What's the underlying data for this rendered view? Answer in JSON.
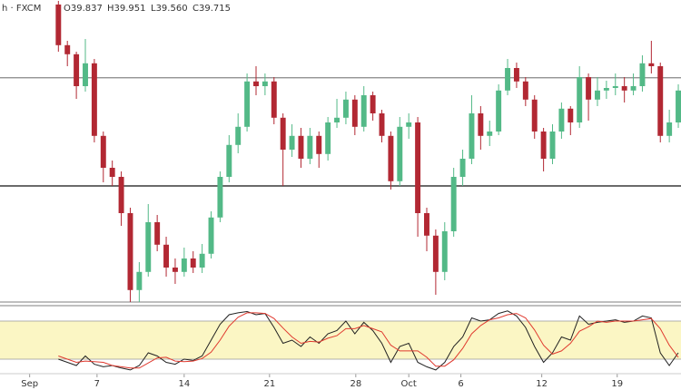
{
  "chart_data": {
    "type": "candlestick",
    "header": {
      "symbol": "h · FXCM",
      "open": "O39.837",
      "high": "H39.951",
      "low": "L39.560",
      "close": "C39.715"
    },
    "up_color": "#53b987",
    "down_color": "#b22833",
    "open": [
      40.0,
      38.88,
      38.63,
      37.75,
      38.38,
      36.38,
      35.5,
      35.25,
      34.25,
      32.13,
      32.63,
      34.0,
      33.38,
      32.75,
      32.63,
      33.0,
      32.75,
      33.13,
      34.13,
      35.25,
      36.13,
      36.63,
      37.88,
      37.75,
      37.88,
      36.88,
      36.0,
      36.38,
      35.75,
      36.38,
      35.88,
      36.75,
      36.88,
      37.38,
      36.63,
      37.5,
      37.0,
      36.38,
      35.13,
      36.63,
      36.75,
      34.25,
      33.63,
      32.63,
      33.75,
      35.25,
      35.75,
      37.0,
      36.38,
      36.5,
      37.63,
      38.25,
      37.88,
      37.38,
      36.5,
      35.75,
      36.5,
      37.13,
      36.75,
      38.0,
      37.38,
      37.63,
      37.7,
      37.75,
      37.63,
      37.75,
      38.38,
      38.3,
      36.38,
      36.75
    ],
    "high": [
      40.1,
      39.0,
      38.7,
      39.05,
      38.5,
      36.5,
      35.7,
      35.4,
      34.4,
      32.9,
      34.5,
      34.2,
      33.6,
      33.0,
      33.3,
      33.2,
      33.4,
      34.3,
      35.4,
      36.4,
      37.0,
      38.1,
      38.3,
      38.1,
      38.0,
      37.0,
      36.7,
      36.6,
      36.6,
      36.5,
      36.9,
      37.4,
      37.6,
      37.5,
      37.75,
      37.6,
      37.1,
      36.5,
      36.9,
      37.0,
      36.9,
      34.4,
      33.8,
      34.0,
      35.5,
      36.0,
      37.5,
      37.2,
      36.8,
      37.8,
      38.5,
      38.4,
      38.0,
      37.5,
      36.6,
      36.7,
      37.3,
      37.2,
      38.3,
      38.1,
      38.0,
      37.9,
      38.1,
      38.0,
      38.1,
      38.6,
      39.0,
      38.4,
      37.1,
      37.8
    ],
    "low": [
      38.7,
      38.3,
      37.4,
      37.6,
      36.2,
      35.1,
      35.0,
      33.9,
      31.8,
      31.8,
      32.5,
      33.2,
      32.5,
      32.3,
      32.5,
      32.6,
      32.6,
      33.0,
      34.0,
      35.1,
      35.9,
      36.5,
      37.5,
      37.5,
      36.7,
      35.0,
      35.8,
      35.5,
      35.6,
      35.5,
      35.7,
      36.6,
      36.7,
      36.4,
      36.5,
      36.8,
      36.2,
      34.9,
      35.0,
      36.3,
      33.6,
      33.2,
      32.0,
      32.4,
      33.6,
      35.0,
      35.6,
      36.0,
      36.1,
      36.4,
      37.5,
      37.7,
      37.2,
      36.3,
      35.4,
      35.6,
      36.3,
      36.4,
      36.6,
      36.8,
      37.2,
      37.4,
      37.5,
      37.3,
      37.5,
      37.6,
      38.1,
      36.2,
      36.2,
      36.6
    ],
    "close": [
      38.88,
      38.63,
      37.75,
      38.38,
      36.38,
      35.5,
      35.25,
      34.25,
      32.13,
      32.63,
      34.0,
      33.38,
      32.75,
      32.63,
      33.0,
      32.75,
      33.13,
      34.13,
      35.25,
      36.13,
      36.63,
      37.88,
      37.75,
      37.88,
      36.88,
      36.0,
      36.38,
      35.75,
      36.38,
      35.88,
      36.75,
      36.88,
      37.38,
      36.63,
      37.5,
      37.0,
      36.38,
      35.13,
      36.63,
      36.75,
      34.25,
      33.63,
      32.63,
      33.75,
      35.25,
      35.75,
      37.0,
      36.38,
      36.5,
      37.63,
      38.25,
      37.88,
      37.38,
      36.5,
      35.75,
      36.5,
      37.13,
      36.75,
      38.0,
      37.38,
      37.63,
      37.7,
      37.75,
      37.63,
      37.75,
      38.38,
      38.3,
      36.38,
      36.75,
      37.63
    ],
    "ylim": [
      31.5,
      40.125
    ],
    "levels": [
      37.98,
      35.0,
      31.8,
      31.7
    ],
    "xlim": [
      -6.5,
      69.3
    ],
    "xticks": [
      {
        "value": -3.2,
        "label": "Sep"
      },
      {
        "value": 4.3,
        "label": "7"
      },
      {
        "value": 14.0,
        "label": "14"
      },
      {
        "value": 23.5,
        "label": "21"
      },
      {
        "value": 33.1,
        "label": "28"
      },
      {
        "value": 39.0,
        "label": "Oct"
      },
      {
        "value": 44.8,
        "label": "6"
      },
      {
        "value": 53.8,
        "label": "12"
      },
      {
        "value": 62.2,
        "label": "19"
      }
    ],
    "stoch": {
      "ylim": [
        0,
        100
      ],
      "band": [
        20,
        80
      ],
      "band_color": "#fbf6c4",
      "series": [
        {
          "color": "#222222",
          "values": [
            20,
            15,
            10,
            25,
            12,
            8,
            10,
            6,
            3,
            10,
            30,
            25,
            15,
            12,
            20,
            18,
            25,
            50,
            75,
            90,
            93,
            95,
            90,
            92,
            70,
            45,
            50,
            40,
            55,
            45,
            60,
            65,
            80,
            60,
            78,
            65,
            45,
            15,
            40,
            45,
            15,
            8,
            3,
            15,
            40,
            55,
            85,
            80,
            82,
            92,
            96,
            88,
            70,
            40,
            15,
            30,
            55,
            50,
            88,
            75,
            78,
            80,
            82,
            78,
            80,
            88,
            85,
            30,
            10,
            30
          ]
        },
        {
          "color": "#e03a2f",
          "values": [
            25,
            20,
            15,
            17,
            16,
            15,
            10,
            8,
            6,
            6,
            14,
            22,
            23,
            17,
            16,
            17,
            21,
            31,
            50,
            72,
            86,
            93,
            93,
            92,
            84,
            69,
            55,
            45,
            48,
            47,
            53,
            57,
            68,
            68,
            73,
            68,
            63,
            42,
            33,
            33,
            33,
            23,
            9,
            9,
            19,
            37,
            60,
            73,
            82,
            85,
            90,
            92,
            85,
            66,
            42,
            28,
            33,
            45,
            64,
            71,
            80,
            78,
            80,
            80,
            80,
            82,
            84,
            68,
            42,
            23
          ]
        }
      ]
    }
  }
}
